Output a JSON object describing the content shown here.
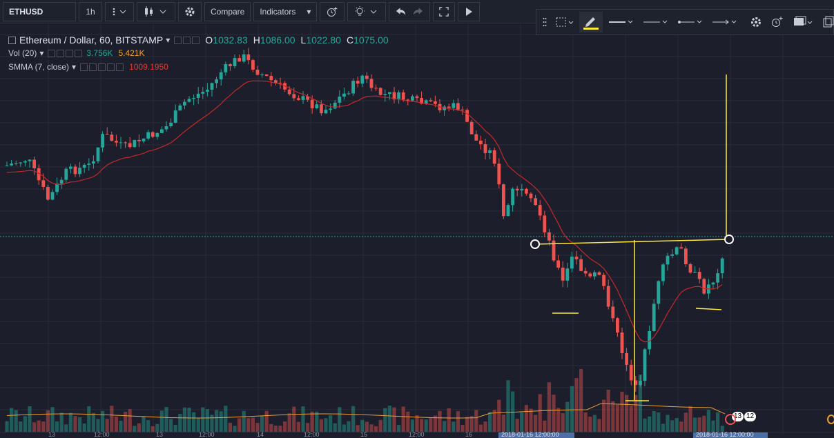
{
  "toolbar": {
    "symbol": "ETHUSD",
    "interval": "1h",
    "compare_label": "Compare",
    "indicators_label": "Indicators"
  },
  "legend": {
    "main_title": "Ethereum / Dollar, 60, BITSTAMP",
    "open_label": "O",
    "open": "1032.83",
    "high_label": "H",
    "high": "1086.00",
    "low_label": "L",
    "low": "1022.80",
    "close_label": "C",
    "close": "1075.00",
    "vol_title": "Vol (20)",
    "vol_value1": "3.756K",
    "vol_value2": "5.421K",
    "smma_title": "SMMA (7, close)",
    "smma_value": "1009.1950"
  },
  "colors": {
    "up": "#26a69a",
    "down": "#ef5350",
    "smma": "#c62828",
    "vol_ma": "#f0a030",
    "drawing": "#ffeb3b",
    "background": "#1c1f2b",
    "grid": "#2a2e3a"
  },
  "icons": [
    "chevrons-icon",
    "bars-icon",
    "gear-icon",
    "alarm-icon",
    "lightbulb-icon",
    "undo-icon",
    "redo-icon",
    "fullscreen-icon",
    "play-icon",
    "drag-handle-icon",
    "selection-icon",
    "pencil-icon",
    "line-style-icon",
    "dash-style-icon",
    "line-end-icon",
    "arrow-end-icon",
    "settings-icon",
    "alert-add-icon",
    "layers-icon",
    "clone-icon",
    "lock-icon"
  ],
  "timebar": {
    "labels": [
      "13",
      "12:00",
      "14",
      "12:00",
      "15",
      "12:00",
      "16",
      "2018-01-16 12:00:00"
    ]
  },
  "badges": {
    "b1": "13",
    "b2": "12"
  }
}
